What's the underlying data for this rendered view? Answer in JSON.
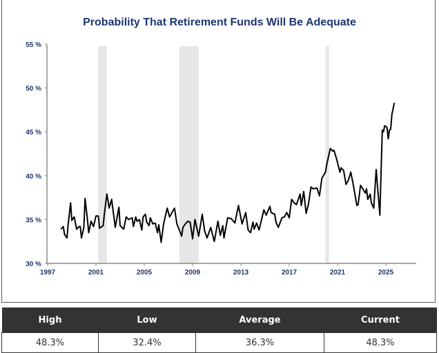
{
  "chart_data": {
    "type": "line",
    "title": "Probability That Retirement Funds Will Be Adequate",
    "xlim": [
      1997,
      2027.5
    ],
    "ylim": [
      30,
      55
    ],
    "x_ticks": [
      "1997",
      "2001",
      "2005",
      "2009",
      "2013",
      "2017",
      "2021",
      "2025"
    ],
    "y_ticks": [
      "30 %",
      "35 %",
      "40 %",
      "45 %",
      "50 %",
      "55 %"
    ],
    "grid": false,
    "line_color": "#000000",
    "shade_color": "#e6e6e6",
    "shaded_periods": [
      [
        2001.2,
        2001.9
      ],
      [
        2007.9,
        2009.5
      ],
      [
        2020.0,
        2020.3
      ]
    ],
    "x": [
      1998.1,
      1998.3,
      1998.4,
      1998.6,
      1998.7,
      1998.9,
      1999.0,
      1999.2,
      1999.4,
      1999.6,
      1999.7,
      1999.8,
      2000.0,
      2000.1,
      2000.3,
      2000.4,
      2000.6,
      2000.8,
      2001.0,
      2001.2,
      2001.3,
      2001.6,
      2001.7,
      2001.9,
      2002.1,
      2002.3,
      2002.6,
      2002.9,
      2003.0,
      2003.3,
      2003.5,
      2003.7,
      2004.0,
      2004.1,
      2004.3,
      2004.4,
      2004.6,
      2004.8,
      2004.9,
      2005.1,
      2005.2,
      2005.4,
      2005.5,
      2005.7,
      2005.9,
      2006.1,
      2006.2,
      2006.4,
      2006.6,
      2006.9,
      2007.1,
      2007.3,
      2007.5,
      2007.7,
      2007.9,
      2008.1,
      2008.2,
      2008.4,
      2008.6,
      2008.8,
      2009.0,
      2009.2,
      2009.5,
      2009.8,
      2010.0,
      2010.2,
      2010.5,
      2010.8,
      2011.1,
      2011.3,
      2011.5,
      2011.6,
      2011.9,
      2012.2,
      2012.5,
      2012.8,
      2013.1,
      2013.4,
      2013.6,
      2013.8,
      2014.0,
      2014.1,
      2014.3,
      2014.5,
      2014.8,
      2014.9,
      2015.1,
      2015.4,
      2015.5,
      2015.8,
      2015.9,
      2016.1,
      2016.4,
      2016.6,
      2016.8,
      2017.0,
      2017.2,
      2017.4,
      2017.6,
      2017.9,
      2018.0,
      2018.2,
      2018.4,
      2018.6,
      2018.8,
      2019.0,
      2019.3,
      2019.5,
      2019.7,
      2020.0,
      2020.1,
      2020.4,
      2020.6,
      2020.7,
      2020.9,
      2021.2,
      2021.3,
      2021.5,
      2021.7,
      2021.9,
      2022.1,
      2022.3,
      2022.4,
      2022.6,
      2022.7,
      2022.9,
      2023.1,
      2023.3,
      2023.4,
      2023.5,
      2023.7,
      2023.8,
      2024.0,
      2024.1,
      2024.2,
      2024.3,
      2024.5,
      2024.7,
      2024.8,
      2024.9,
      2025.1,
      2025.2,
      2025.3,
      2025.4,
      2025.5,
      2025.7
    ],
    "values": [
      33.9,
      34.2,
      33.3,
      32.9,
      34.5,
      36.9,
      34.9,
      35.3,
      33.9,
      34.2,
      34.2,
      32.9,
      34.1,
      37.4,
      35.0,
      33.5,
      34.8,
      34.2,
      35.4,
      35.4,
      34.0,
      34.3,
      35.7,
      37.9,
      36.3,
      37.3,
      34.1,
      36.4,
      34.3,
      33.9,
      35.3,
      35.0,
      35.2,
      34.2,
      35.3,
      34.8,
      35.0,
      33.8,
      35.3,
      35.6,
      34.7,
      34.3,
      35.2,
      34.5,
      34.6,
      33.5,
      34.4,
      32.4,
      34.5,
      36.3,
      35.3,
      35.8,
      36.3,
      34.5,
      33.8,
      33.1,
      34.1,
      34.5,
      34.8,
      34.7,
      32.8,
      35.0,
      33.1,
      35.6,
      33.7,
      32.9,
      34.1,
      32.5,
      34.8,
      33.2,
      34.3,
      32.9,
      35.2,
      35.1,
      34.6,
      36.6,
      34.5,
      35.8,
      33.8,
      33.5,
      34.7,
      33.9,
      34.6,
      33.8,
      35.5,
      36.1,
      35.5,
      36.5,
      35.8,
      35.6,
      34.7,
      34.1,
      35.2,
      35.3,
      35.8,
      35.2,
      37.3,
      36.9,
      36.7,
      37.9,
      36.6,
      38.2,
      35.7,
      36.8,
      38.7,
      38.5,
      38.6,
      37.7,
      39.7,
      40.4,
      41.2,
      43.1,
      42.8,
      42.9,
      42.0,
      40.4,
      40.9,
      40.6,
      39.0,
      39.5,
      40.4,
      39.0,
      38.2,
      36.6,
      36.7,
      38.9,
      38.5,
      38.0,
      38.5,
      37.3,
      37.9,
      36.9,
      36.3,
      38.5,
      40.7,
      39.0,
      35.5,
      45.2,
      45.0,
      45.7,
      45.5,
      44.2,
      45.2,
      45.3,
      47.0,
      48.3
    ]
  },
  "summary_table": {
    "headers": [
      "High",
      "Low",
      "Average",
      "Current"
    ],
    "values": [
      "48.3%",
      "32.4%",
      "36.3%",
      "48.3%"
    ]
  },
  "colors": {
    "title": "#1d3570",
    "axis_labels": "#1d3570",
    "table_header_bg": "#333333"
  }
}
